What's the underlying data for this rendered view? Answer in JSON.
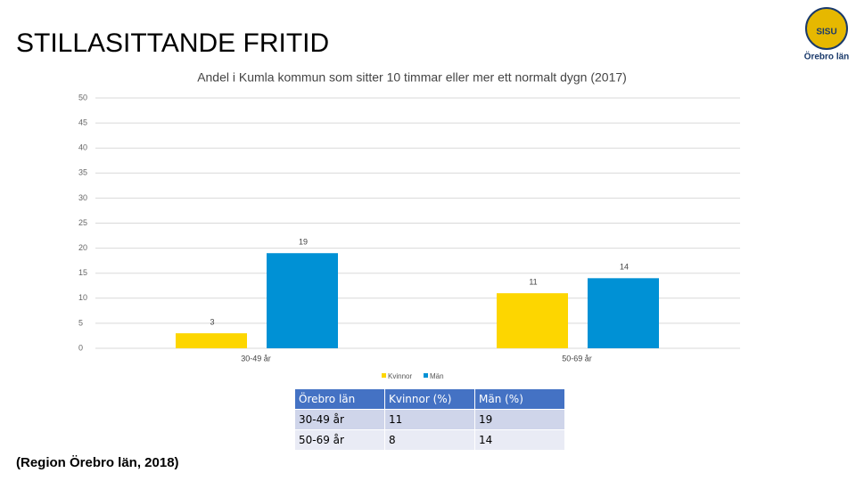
{
  "slide_title": "STILLASITTANDE FRITID",
  "logo": {
    "emblem": "SISU",
    "name": "Örebro län"
  },
  "chart_data": {
    "type": "bar",
    "title": "Andel i Kumla kommun som sitter 10 timmar eller mer ett normalt dygn (2017)",
    "categories": [
      "30-49 år",
      "50-69 år"
    ],
    "series": [
      {
        "name": "Kvinnor",
        "color": "#fdd600",
        "values": [
          3,
          11
        ]
      },
      {
        "name": "Män",
        "color": "#0091d5",
        "values": [
          19,
          14
        ]
      }
    ],
    "ylim": [
      0,
      50
    ],
    "yticks": [
      0,
      5,
      10,
      15,
      20,
      25,
      30,
      35,
      40,
      45,
      50
    ],
    "grid": true,
    "legend": "bottom"
  },
  "table": {
    "header": [
      "Örebro län",
      "Kvinnor (%)",
      "Män (%)"
    ],
    "rows": [
      [
        "30-49 år",
        "11",
        "19"
      ],
      [
        "50-69 år",
        "8",
        "14"
      ]
    ]
  },
  "source": "(Region Örebro län, 2018)"
}
